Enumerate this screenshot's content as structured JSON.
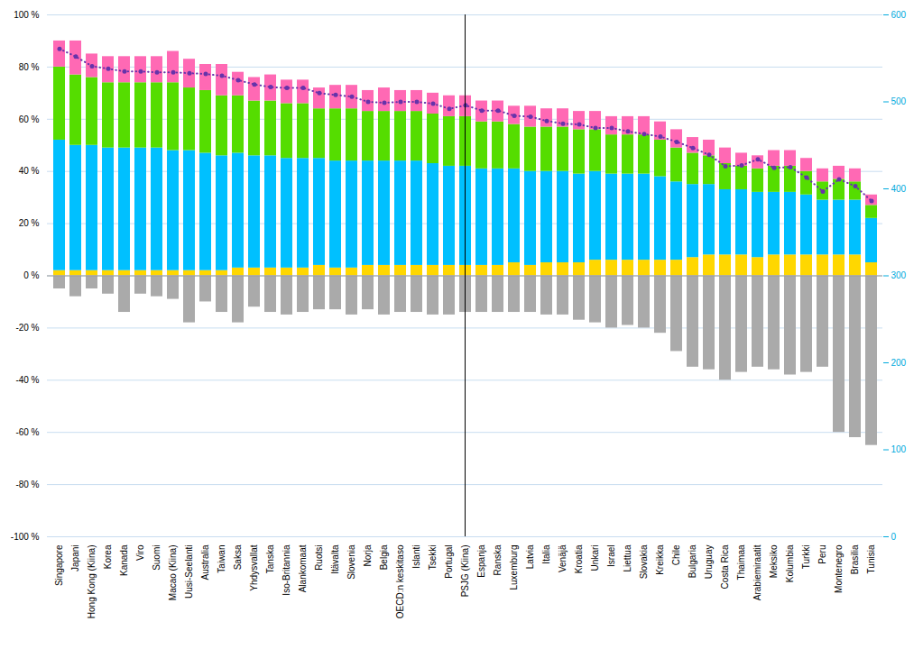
{
  "chart_data": {
    "type": "bar",
    "stacked": true,
    "grid": true,
    "categories": [
      "Singapore",
      "Japani",
      "Hong Kong (Kiina)",
      "Korea",
      "Kanada",
      "Viro",
      "Suomi",
      "Macao (Kiina)",
      "Uusi-Seelanti",
      "Australia",
      "Taiwan",
      "Saksa",
      "Yhdysvallat",
      "Tanska",
      "Iso-Britannia",
      "Alankomaat",
      "Ruotsi",
      "Itävalta",
      "Slovenia",
      "Norja",
      "Belgia",
      "OECD:n keskitaso",
      "Islanti",
      "Tsekki",
      "Portugal",
      "PSJG (Kiina)",
      "Espanja",
      "Ranska",
      "Luxemburg",
      "Latvia",
      "Italia",
      "Venäjä",
      "Kroatia",
      "Unkari",
      "Israel",
      "Liettua",
      "Slovakia",
      "Kreikka",
      "Chile",
      "Bulgaria",
      "Uruguay",
      "Costa Rica",
      "Thaimaa",
      "Arabiemiraatit",
      "Meksiko",
      "Kolumbia",
      "Turkki",
      "Peru",
      "Montenegro",
      "Brasilia",
      "Tunisia"
    ],
    "series": [
      {
        "type": "bar",
        "color": "#FFD700",
        "values": [
          2,
          2,
          2,
          2,
          2,
          2,
          2,
          2,
          2,
          2,
          2,
          3,
          3,
          3,
          3,
          3,
          4,
          3,
          3,
          4,
          4,
          4,
          4,
          4,
          4,
          4,
          4,
          4,
          5,
          4,
          5,
          5,
          5,
          6,
          6,
          6,
          6,
          6,
          6,
          7,
          8,
          8,
          8,
          7,
          8,
          8,
          8,
          8,
          8,
          8,
          5
        ]
      },
      {
        "type": "bar",
        "color": "#00C0FF",
        "values": [
          50,
          48,
          48,
          47,
          47,
          47,
          47,
          46,
          46,
          45,
          44,
          44,
          43,
          43,
          42,
          42,
          41,
          41,
          41,
          40,
          40,
          40,
          40,
          39,
          38,
          38,
          37,
          37,
          36,
          36,
          35,
          35,
          34,
          34,
          33,
          33,
          33,
          32,
          30,
          28,
          27,
          25,
          25,
          25,
          24,
          24,
          23,
          21,
          21,
          21,
          17
        ]
      },
      {
        "type": "bar",
        "color": "#55DD00",
        "values": [
          28,
          27,
          26,
          25,
          25,
          25,
          25,
          26,
          24,
          24,
          23,
          22,
          21,
          21,
          21,
          21,
          19,
          20,
          20,
          19,
          19,
          19,
          19,
          19,
          19,
          19,
          18,
          18,
          17,
          17,
          17,
          17,
          17,
          16,
          15,
          15,
          15,
          14,
          13,
          12,
          11,
          10,
          9,
          9,
          10,
          10,
          9,
          7,
          8,
          7,
          5
        ]
      },
      {
        "type": "bar",
        "color": "#FF69B4",
        "values": [
          10,
          13,
          9,
          10,
          10,
          10,
          10,
          12,
          11,
          10,
          12,
          9,
          9,
          10,
          9,
          9,
          8,
          9,
          9,
          8,
          9,
          8,
          8,
          8,
          8,
          8,
          8,
          8,
          7,
          8,
          7,
          7,
          7,
          7,
          7,
          7,
          7,
          7,
          7,
          6,
          6,
          6,
          5,
          5,
          6,
          6,
          5,
          5,
          5,
          5,
          4
        ]
      },
      {
        "type": "bar",
        "color": "#AAAAAA",
        "values": [
          -5,
          -8,
          -5,
          -7,
          -14,
          -7,
          -8,
          -9,
          -18,
          -10,
          -14,
          -18,
          -12,
          -14,
          -15,
          -14,
          -13,
          -13,
          -15,
          -13,
          -15,
          -14,
          -14,
          -15,
          -15,
          -14,
          -14,
          -14,
          -14,
          -14,
          -15,
          -15,
          -17,
          -18,
          -20,
          -19,
          -20,
          -22,
          -29,
          -35,
          -36,
          -40,
          -37,
          -35,
          -36,
          -38,
          -37,
          -35,
          -60,
          -62,
          -65
        ]
      },
      {
        "type": "line",
        "axis": "y2",
        "color": "#6633AA",
        "line_style": "dotted",
        "marker": "o",
        "values": [
          561,
          552,
          541,
          538,
          535,
          535,
          534,
          534,
          533,
          532,
          530,
          525,
          520,
          517,
          516,
          516,
          510,
          508,
          506,
          500,
          499,
          500,
          500,
          498,
          492,
          496,
          490,
          490,
          484,
          483,
          478,
          475,
          474,
          470,
          470,
          466,
          463,
          460,
          454,
          447,
          439,
          426,
          427,
          434,
          424,
          425,
          413,
          397,
          411,
          403,
          386
        ]
      }
    ],
    "ylim": [
      -100,
      100
    ],
    "yticks": [
      {
        "value": -100,
        "label": "-100 %"
      },
      {
        "value": -80,
        "label": "-80 %"
      },
      {
        "value": -60,
        "label": "-60 %"
      },
      {
        "value": -40,
        "label": "-40 %"
      },
      {
        "value": -20,
        "label": "-20 %"
      },
      {
        "value": 0,
        "label": "0 %"
      },
      {
        "value": 20,
        "label": "20 %"
      },
      {
        "value": 40,
        "label": "40 %"
      },
      {
        "value": 60,
        "label": "60 %"
      },
      {
        "value": 80,
        "label": "80 %"
      },
      {
        "value": 100,
        "label": "100 %"
      }
    ],
    "y2lim": [
      0,
      600
    ],
    "y2ticks": [
      0,
      100,
      200,
      300,
      400,
      500,
      600
    ]
  }
}
